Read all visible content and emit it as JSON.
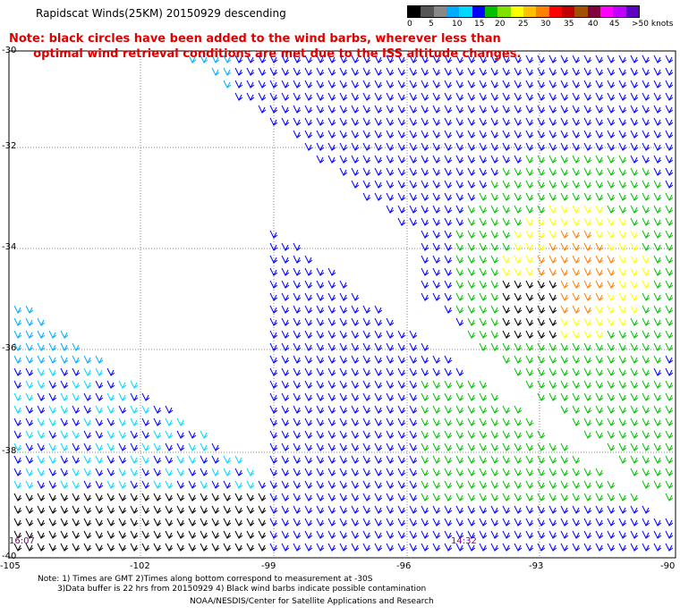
{
  "title": "Rapidscat Winds(25KM) 20150929 descending",
  "note_line1": "Note: black circles have been added to the wind barbs, wherever less than",
  "note_line2": "      optimal wind retrieval conditions are met due to the ISS altitude changes.",
  "scale": {
    "colors": [
      "#000000",
      "#555555",
      "#888888",
      "#00aaff",
      "#00d8ff",
      "#0000ff",
      "#00c000",
      "#80e000",
      "#ffff00",
      "#ffc000",
      "#ff8000",
      "#ff0000",
      "#c00000",
      "#a05000",
      "#800040",
      "#ff00ff",
      "#c000ff",
      "#6000c0"
    ],
    "labels": [
      "0",
      "5",
      "10",
      "15",
      "20",
      "25",
      "30",
      "35",
      "40",
      "45",
      ">50 knots"
    ]
  },
  "axes": {
    "lat_labels": [
      "-30",
      "-32",
      "-34",
      "-36",
      "-38",
      "-40"
    ],
    "lon_labels": [
      "-105",
      "-102",
      "-99",
      "-96",
      "-93",
      "-90"
    ]
  },
  "times": {
    "left": "16:07",
    "right": "14:32"
  },
  "footer": {
    "line1": "Note: 1) Times are GMT 2)Times along bottom correspond to measurement at -30S",
    "line2": "3)Data buffer is 22 hrs from 20150929 4) Black wind barbs indicate possible contamination",
    "line3": "NOAA/NESDIS/Center for Satellite Applications and Research"
  }
}
